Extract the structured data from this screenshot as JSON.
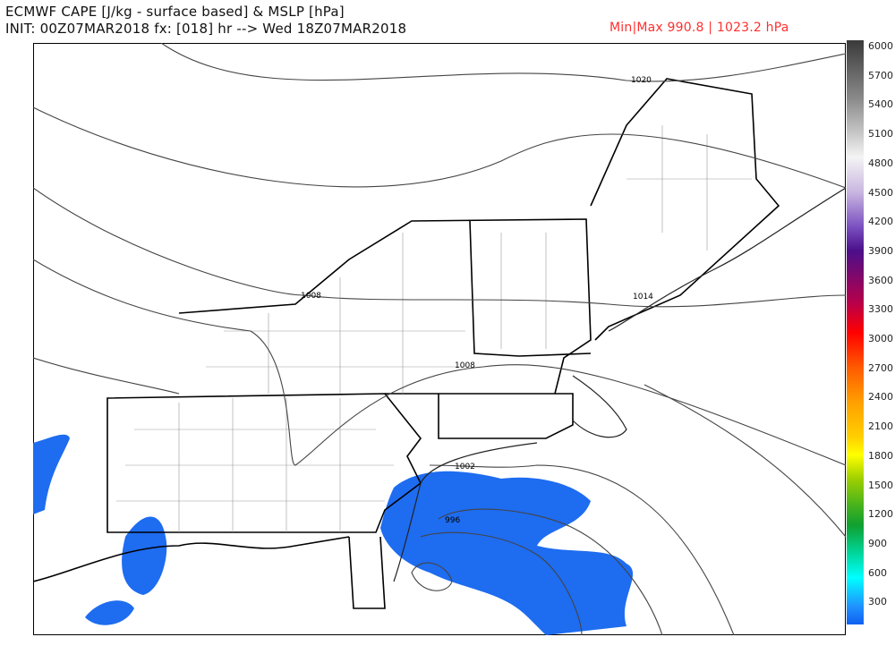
{
  "header": {
    "title": "ECMWF CAPE [J/kg - surface based] & MSLP [hPa]",
    "init_line": "INIT: 00Z07MAR2018 fx: [018] hr --> Wed 18Z07MAR2018",
    "minmax": "Min|Max 990.8 | 1023.2 hPa",
    "minmax_color": "#ff3030"
  },
  "colorbar": {
    "labels": [
      "6000",
      "5700",
      "5400",
      "5100",
      "4800",
      "4500",
      "4200",
      "3900",
      "3600",
      "3300",
      "3000",
      "2700",
      "2400",
      "2100",
      "1800",
      "1500",
      "1200",
      "900",
      "600",
      "300"
    ]
  },
  "contour_labels": [
    "1020",
    "1008",
    "1014",
    "1008",
    "1002",
    "996"
  ],
  "cape_color": "#1e6cf0"
}
